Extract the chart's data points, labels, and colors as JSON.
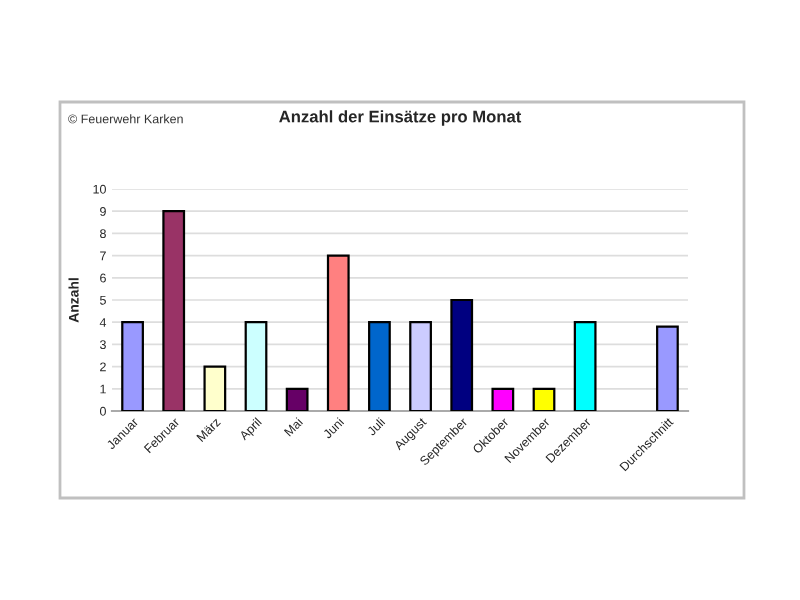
{
  "chart_data": {
    "type": "bar",
    "title": "Anzahl der Einsätze pro Monat",
    "ylabel": "Anzahl",
    "annotations": [
      "© Feuerwehr Karken"
    ],
    "categories": [
      "Januar",
      "Februar",
      "März",
      "April",
      "Mai",
      "Juni",
      "Juli",
      "August",
      "September",
      "Oktober",
      "November",
      "Dezember",
      null,
      "Durchschnitt"
    ],
    "values": [
      4,
      9,
      2,
      4,
      1,
      7,
      4,
      4,
      5,
      1,
      1,
      4,
      null,
      3.8
    ],
    "colors": [
      "#9999ff",
      "#993366",
      "#ffffcc",
      "#ccffff",
      "#660066",
      "#ff8080",
      "#0066cc",
      "#ccccff",
      "#000080",
      "#ff00ff",
      "#ffff00",
      "#00ffff",
      "#ffffff",
      "#9999ff"
    ],
    "ylim": [
      0,
      10
    ],
    "yticks": [
      0,
      1,
      2,
      3,
      4,
      5,
      6,
      7,
      8,
      9,
      10
    ],
    "grid": "y"
  }
}
